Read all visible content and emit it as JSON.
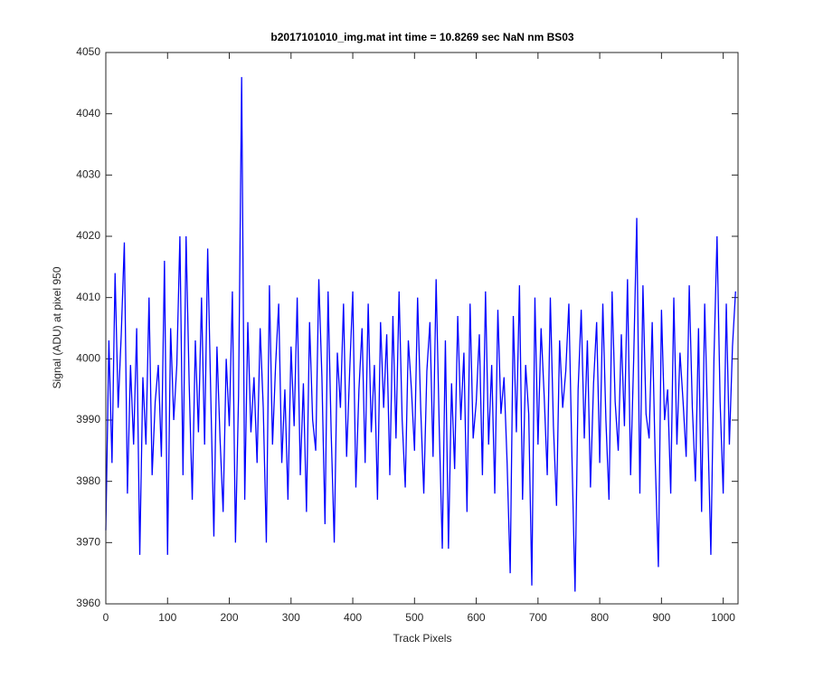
{
  "chart_data": {
    "type": "line",
    "title": "b2017101010_img.mat int time = 10.8269 sec  NaN nm BS03",
    "x_label": "Track Pixels",
    "y_label": "Signal (ADU) at pixel 950",
    "xlim": [
      0,
      1024
    ],
    "ylim": [
      3960,
      4050
    ],
    "xticks": [
      0,
      100,
      200,
      300,
      400,
      500,
      600,
      700,
      800,
      900,
      1000
    ],
    "yticks": [
      3960,
      3970,
      3980,
      3990,
      4000,
      4010,
      4020,
      4030,
      4040,
      4050
    ],
    "grid": false,
    "x": [
      0,
      5,
      10,
      15,
      20,
      25,
      30,
      35,
      40,
      45,
      50,
      55,
      60,
      65,
      70,
      75,
      80,
      85,
      90,
      95,
      100,
      105,
      110,
      115,
      120,
      125,
      130,
      135,
      140,
      145,
      150,
      155,
      160,
      165,
      170,
      175,
      180,
      185,
      190,
      195,
      200,
      205,
      210,
      215,
      220,
      225,
      230,
      235,
      240,
      245,
      250,
      255,
      260,
      265,
      270,
      275,
      280,
      285,
      290,
      295,
      300,
      305,
      310,
      315,
      320,
      325,
      330,
      335,
      340,
      345,
      350,
      355,
      360,
      365,
      370,
      375,
      380,
      385,
      390,
      395,
      400,
      405,
      410,
      415,
      420,
      425,
      430,
      435,
      440,
      445,
      450,
      455,
      460,
      465,
      470,
      475,
      480,
      485,
      490,
      495,
      500,
      505,
      510,
      515,
      520,
      525,
      530,
      535,
      540,
      545,
      550,
      555,
      560,
      565,
      570,
      575,
      580,
      585,
      590,
      595,
      600,
      605,
      610,
      615,
      620,
      625,
      630,
      635,
      640,
      645,
      650,
      655,
      660,
      665,
      670,
      675,
      680,
      685,
      690,
      695,
      700,
      705,
      710,
      715,
      720,
      725,
      730,
      735,
      740,
      745,
      750,
      755,
      760,
      765,
      770,
      775,
      780,
      785,
      790,
      795,
      800,
      805,
      810,
      815,
      820,
      825,
      830,
      835,
      840,
      845,
      850,
      855,
      860,
      865,
      870,
      875,
      880,
      885,
      890,
      895,
      900,
      905,
      910,
      915,
      920,
      925,
      930,
      935,
      940,
      945,
      950,
      955,
      960,
      965,
      970,
      975,
      980,
      985,
      990,
      995,
      1000,
      1005,
      1010,
      1015,
      1020
    ],
    "series": [
      {
        "name": "signal",
        "color": "#0000ff",
        "values": [
          3972,
          4003,
          3983,
          4014,
          3992,
          4004,
          4019,
          3978,
          3999,
          3986,
          4005,
          3968,
          3997,
          3986,
          4010,
          3981,
          3993,
          3999,
          3984,
          4016,
          3968,
          4005,
          3990,
          3999,
          4020,
          3981,
          4020,
          3996,
          3977,
          4003,
          3988,
          4010,
          3986,
          4018,
          3994,
          3971,
          4002,
          3987,
          3975,
          4000,
          3989,
          4011,
          3970,
          3994,
          4046,
          3977,
          4006,
          3988,
          3997,
          3983,
          4005,
          3992,
          3970,
          4012,
          3986,
          3999,
          4009,
          3983,
          3995,
          3977,
          4002,
          3989,
          4010,
          3981,
          3996,
          3975,
          4006,
          3990,
          3985,
          4013,
          3997,
          3973,
          4011,
          3988,
          3970,
          4001,
          3992,
          4009,
          3984,
          3998,
          4011,
          3979,
          3995,
          4005,
          3983,
          4009,
          3988,
          3999,
          3977,
          4006,
          3992,
          4004,
          3981,
          4007,
          3987,
          4011,
          3990,
          3979,
          4003,
          3995,
          3985,
          4010,
          3992,
          3978,
          3998,
          4006,
          3984,
          4013,
          3989,
          3969,
          4003,
          3969,
          3996,
          3982,
          4007,
          3990,
          4001,
          3975,
          4009,
          3987,
          3993,
          4004,
          3981,
          4011,
          3986,
          3999,
          3978,
          4008,
          3991,
          3997,
          3983,
          3965,
          4007,
          3988,
          4012,
          3977,
          3999,
          3991,
          3963,
          4010,
          3986,
          4005,
          3994,
          3981,
          4010,
          3989,
          3976,
          4003,
          3992,
          3998,
          4009,
          3984,
          3962,
          3995,
          4008,
          3987,
          4003,
          3979,
          3996,
          4006,
          3983,
          4009,
          3990,
          3977,
          4011,
          3993,
          3985,
          4004,
          3989,
          4013,
          3981,
          4000,
          4023,
          3978,
          4012,
          3991,
          3987,
          4006,
          3983,
          3966,
          4008,
          3990,
          3995,
          3978,
          4010,
          3986,
          4001,
          3993,
          3984,
          4012,
          3992,
          3980,
          4005,
          3975,
          4009,
          3989,
          3968,
          4000,
          4020,
          3993,
          3978,
          4009,
          3986,
          4002,
          4011
        ]
      }
    ]
  }
}
